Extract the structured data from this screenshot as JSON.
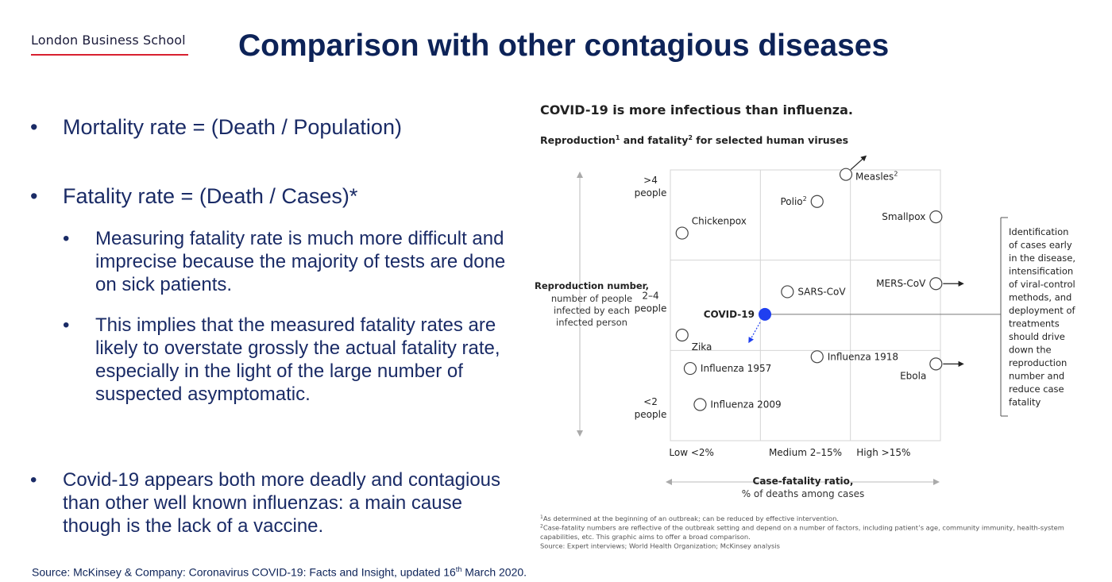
{
  "header": {
    "logo_text": "London Business School",
    "title": "Comparison with other contagious diseases"
  },
  "bullets": {
    "mortality": "Mortality rate = (Death / Population)",
    "fatality": "Fatality rate = (Death / Cases)*",
    "sub1": "Measuring fatality rate is much more difficult and imprecise because the majority of tests are done on sick patients.",
    "sub2": "This implies that the measured fatality rates are likely to overstate grossly the actual fatality rate, especially in the light of the large number of suspected asymptomatic.",
    "covid": "Covid-19 appears both more deadly and contagious than other well known influenzas: a main cause though is the lack of a vaccine."
  },
  "source": {
    "prefix": "Source: McKinsey & Company: Coronavirus COVID-19: Facts and Insight, updated 16",
    "sup": "th",
    "suffix": " March 2020."
  },
  "chart_data": {
    "type": "scatter",
    "title": "COVID-19 is more infectious than influenza.",
    "subtitle_parts": [
      "Reproduction",
      "1",
      " and fatality",
      "2",
      " for selected human viruses"
    ],
    "ylabel_title": "Reproduction number,",
    "ylabel_lines": [
      "number of people",
      "infected by each",
      "infected person"
    ],
    "y_tick_labels": [
      [
        "<2",
        "people"
      ],
      [
        "2–4",
        "people"
      ],
      [
        ">4",
        "people"
      ]
    ],
    "x_tick_labels": [
      "Low <2%",
      "Medium 2–15%",
      "High >15%"
    ],
    "xlabel_title": "Case-fatality ratio,",
    "xlabel_sub": "% of deaths among cases",
    "x_categories": [
      "Low",
      "Medium",
      "High"
    ],
    "y_categories": [
      "<2",
      "2–4",
      ">4"
    ],
    "points": [
      {
        "name": "Measles",
        "sup": "2",
        "x": 1.95,
        "y": 2.95,
        "label_side": "right",
        "arrow": "up-right"
      },
      {
        "name": "Polio",
        "sup": "2",
        "x": 1.63,
        "y": 2.65,
        "label_side": "left"
      },
      {
        "name": "Smallpox",
        "x": 2.95,
        "y": 2.48,
        "label_side": "left"
      },
      {
        "name": "Chickenpox",
        "x": 0.13,
        "y": 2.3,
        "label_side": "above-right"
      },
      {
        "name": "MERS-CoV",
        "x": 2.95,
        "y": 1.74,
        "label_side": "left",
        "arrow": "right"
      },
      {
        "name": "SARS-CoV",
        "x": 1.3,
        "y": 1.65,
        "label_side": "right"
      },
      {
        "name": "COVID-19",
        "x": 1.05,
        "y": 1.4,
        "label_side": "left",
        "highlight": true,
        "arrow": "down-left"
      },
      {
        "name": "Zika",
        "x": 0.13,
        "y": 1.17,
        "label_side": "below"
      },
      {
        "name": "Influenza 1957",
        "x": 0.22,
        "y": 0.8,
        "label_side": "right"
      },
      {
        "name": "Influenza 1918",
        "x": 1.63,
        "y": 0.93,
        "label_side": "right"
      },
      {
        "name": "Ebola",
        "x": 2.95,
        "y": 0.85,
        "label_side": "below-left",
        "arrow": "right"
      },
      {
        "name": "Influenza 2009",
        "x": 0.33,
        "y": 0.4,
        "label_side": "right"
      }
    ],
    "annotation_lines": [
      "Identification",
      "of cases early",
      "in the disease,",
      "intensification",
      "of viral-control",
      "methods, and",
      "deployment of",
      "treatments",
      "should drive",
      "down the",
      "reproduction",
      "number and",
      "reduce case",
      "fatality"
    ],
    "footnotes": [
      {
        "sup": "1",
        "text": "As determined at the beginning of an outbreak; can be reduced by effective intervention."
      },
      {
        "sup": "2",
        "text": "Case-fatality numbers are reflective of the outbreak setting and depend on a number of factors, including patient’s age, community immunity, health-system"
      },
      {
        "sup": "",
        "text": "capabilities, etc. This graphic aims to offer a broad comparison."
      },
      {
        "sup": "",
        "text": "Source: Expert interviews; World Health Organization; McKinsey analysis"
      }
    ],
    "colors": {
      "highlight": "#1f3ff0",
      "text": "#222222",
      "grid": "#d4d4d4",
      "muted": "#aaaaaa"
    },
    "grid": true
  }
}
